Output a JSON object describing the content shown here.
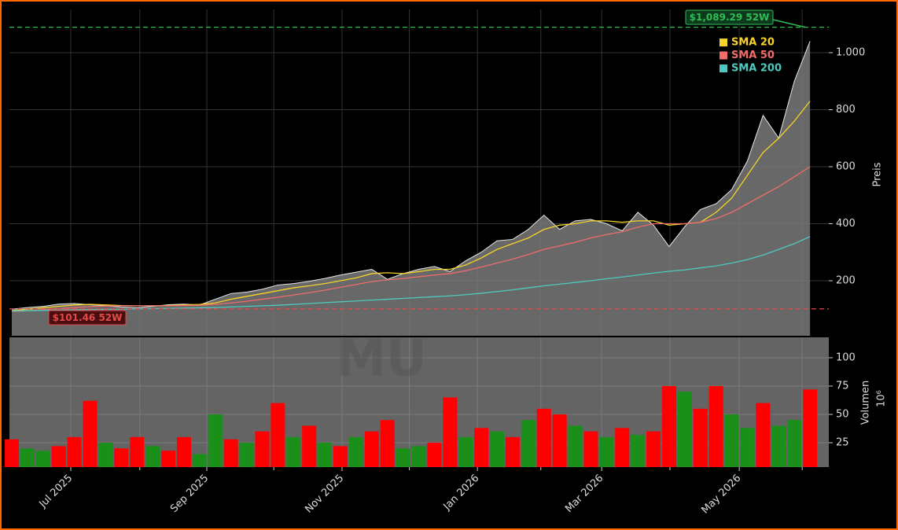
{
  "chart_data": [
    {
      "type": "candlestick-area",
      "watermark": "MU",
      "y_label": "Preis",
      "ylim": [
        6.9,
        1151.7
      ],
      "yticks": [
        200,
        400,
        600,
        800,
        {
          "value": 1000,
          "label": "1.000"
        }
      ],
      "xlim": [
        -0.15,
        52.2
      ],
      "grid": true,
      "legend": "upper right",
      "price_color": "#7a7a7a",
      "x": [
        0,
        1,
        2,
        3,
        4,
        5,
        6,
        7,
        8,
        9,
        10,
        11,
        12,
        13,
        14,
        15,
        16,
        17,
        18,
        19,
        20,
        21,
        22,
        23,
        24,
        25,
        26,
        27,
        28,
        29,
        30,
        31,
        32,
        33,
        34,
        35,
        36,
        37,
        38,
        39,
        40,
        41,
        42,
        43,
        44,
        45,
        46,
        47,
        48,
        49,
        50,
        51
      ],
      "values": [
        100,
        106,
        110,
        118,
        120,
        116,
        112,
        108,
        106,
        110,
        116,
        118,
        115,
        135,
        155,
        160,
        170,
        185,
        190,
        198,
        208,
        220,
        230,
        240,
        205,
        225,
        240,
        250,
        232,
        270,
        300,
        340,
        345,
        380,
        430,
        380,
        410,
        415,
        400,
        375,
        440,
        395,
        320,
        390,
        450,
        470,
        520,
        620,
        780,
        700,
        900,
        1040
      ],
      "series": [
        {
          "name": "SMA 20",
          "color": "#f5d328",
          "values": [
            95,
            100,
            105,
            110,
            115,
            117,
            115,
            113,
            112,
            112,
            113,
            115,
            117,
            122,
            135,
            145,
            155,
            165,
            175,
            182,
            190,
            200,
            210,
            225,
            228,
            225,
            232,
            240,
            240,
            255,
            280,
            310,
            330,
            350,
            380,
            395,
            400,
            410,
            410,
            405,
            410,
            410,
            395,
            400,
            405,
            440,
            490,
            570,
            650,
            700,
            760,
            830
          ]
        },
        {
          "name": "SMA 50",
          "color": "#f06b6b",
          "values": [
            92,
            95,
            98,
            102,
            106,
            109,
            111,
            112,
            112,
            112,
            112,
            113,
            114,
            117,
            122,
            128,
            135,
            142,
            150,
            158,
            167,
            177,
            187,
            197,
            203,
            208,
            214,
            220,
            225,
            235,
            248,
            262,
            276,
            292,
            310,
            322,
            335,
            350,
            362,
            372,
            388,
            400,
            400,
            400,
            405,
            418,
            440,
            470,
            500,
            530,
            565,
            600
          ]
        },
        {
          "name": "SMA 200",
          "color": "#4fc9c0",
          "values": [
            94,
            95,
            96,
            97,
            98,
            99,
            100,
            100,
            101,
            102,
            103,
            104,
            105,
            106,
            108,
            110,
            112,
            114,
            117,
            120,
            123,
            126,
            129,
            132,
            135,
            138,
            141,
            144,
            147,
            151,
            156,
            162,
            168,
            175,
            182,
            188,
            194,
            200,
            207,
            213,
            220,
            227,
            233,
            238,
            245,
            252,
            262,
            274,
            290,
            310,
            330,
            355
          ]
        }
      ],
      "annotations": [
        {
          "value": 1089.29,
          "label": "$1,089.29 52W",
          "color": "#2fbf57"
        },
        {
          "value": 101.46,
          "label": "$101.46 52W",
          "color": "#e34a4a"
        }
      ]
    },
    {
      "type": "bar",
      "y_label": "Volumen",
      "y_unit": "10⁶",
      "ylim": [
        3.5,
        118
      ],
      "yticks": [
        25,
        50,
        75,
        100
      ],
      "xlim": [
        -0.15,
        52.2
      ],
      "xticks": [
        {
          "value": 3.77,
          "label": "Jul 2025"
        },
        {
          "value": 12.46,
          "label": "Sep 2025"
        },
        {
          "value": 21.1,
          "label": "Nov 2025"
        },
        {
          "value": 29.75,
          "label": "Jan 2026"
        },
        {
          "value": 37.69,
          "label": "Mar 2026"
        },
        {
          "value": 46.48,
          "label": "May 2026"
        }
      ],
      "xticks_minor": [
        8.18,
        16.74,
        25.4,
        33.8,
        42.05,
        50.5
      ],
      "grid": true,
      "x": [
        0,
        1,
        2,
        3,
        4,
        5,
        6,
        7,
        8,
        9,
        10,
        11,
        12,
        13,
        14,
        15,
        16,
        17,
        18,
        19,
        20,
        21,
        22,
        23,
        24,
        25,
        26,
        27,
        28,
        29,
        30,
        31,
        32,
        33,
        34,
        35,
        36,
        37,
        38,
        39,
        40,
        41,
        42,
        43,
        44,
        45,
        46,
        47,
        48,
        49,
        50,
        51
      ],
      "values": [
        28,
        20,
        18,
        22,
        30,
        62,
        25,
        20,
        30,
        22,
        18,
        30,
        15,
        50,
        28,
        25,
        35,
        60,
        30,
        40,
        25,
        22,
        30,
        35,
        45,
        20,
        22,
        25,
        65,
        30,
        38,
        35,
        30,
        45,
        55,
        50,
        40,
        35,
        30,
        38,
        32,
        35,
        75,
        70,
        55,
        75,
        50,
        38,
        60,
        40,
        45,
        72
      ],
      "colors": [
        "#ff0000",
        "#1a8f1a",
        "#1a8f1a",
        "#ff0000",
        "#ff0000",
        "#ff0000",
        "#1a8f1a",
        "#ff0000",
        "#ff0000",
        "#1a8f1a",
        "#ff0000",
        "#ff0000",
        "#1a8f1a",
        "#1a8f1a",
        "#ff0000",
        "#1a8f1a",
        "#ff0000",
        "#ff0000",
        "#1a8f1a",
        "#ff0000",
        "#1a8f1a",
        "#ff0000",
        "#1a8f1a",
        "#ff0000",
        "#ff0000",
        "#1a8f1a",
        "#1a8f1a",
        "#ff0000",
        "#ff0000",
        "#1a8f1a",
        "#ff0000",
        "#1a8f1a",
        "#ff0000",
        "#1a8f1a",
        "#ff0000",
        "#ff0000",
        "#1a8f1a",
        "#ff0000",
        "#1a8f1a",
        "#ff0000",
        "#1a8f1a",
        "#ff0000",
        "#ff0000",
        "#1a8f1a",
        "#ff0000",
        "#ff0000",
        "#1a8f1a",
        "#1a8f1a",
        "#ff0000",
        "#1a8f1a",
        "#1a8f1a",
        "#ff0000"
      ]
    }
  ]
}
